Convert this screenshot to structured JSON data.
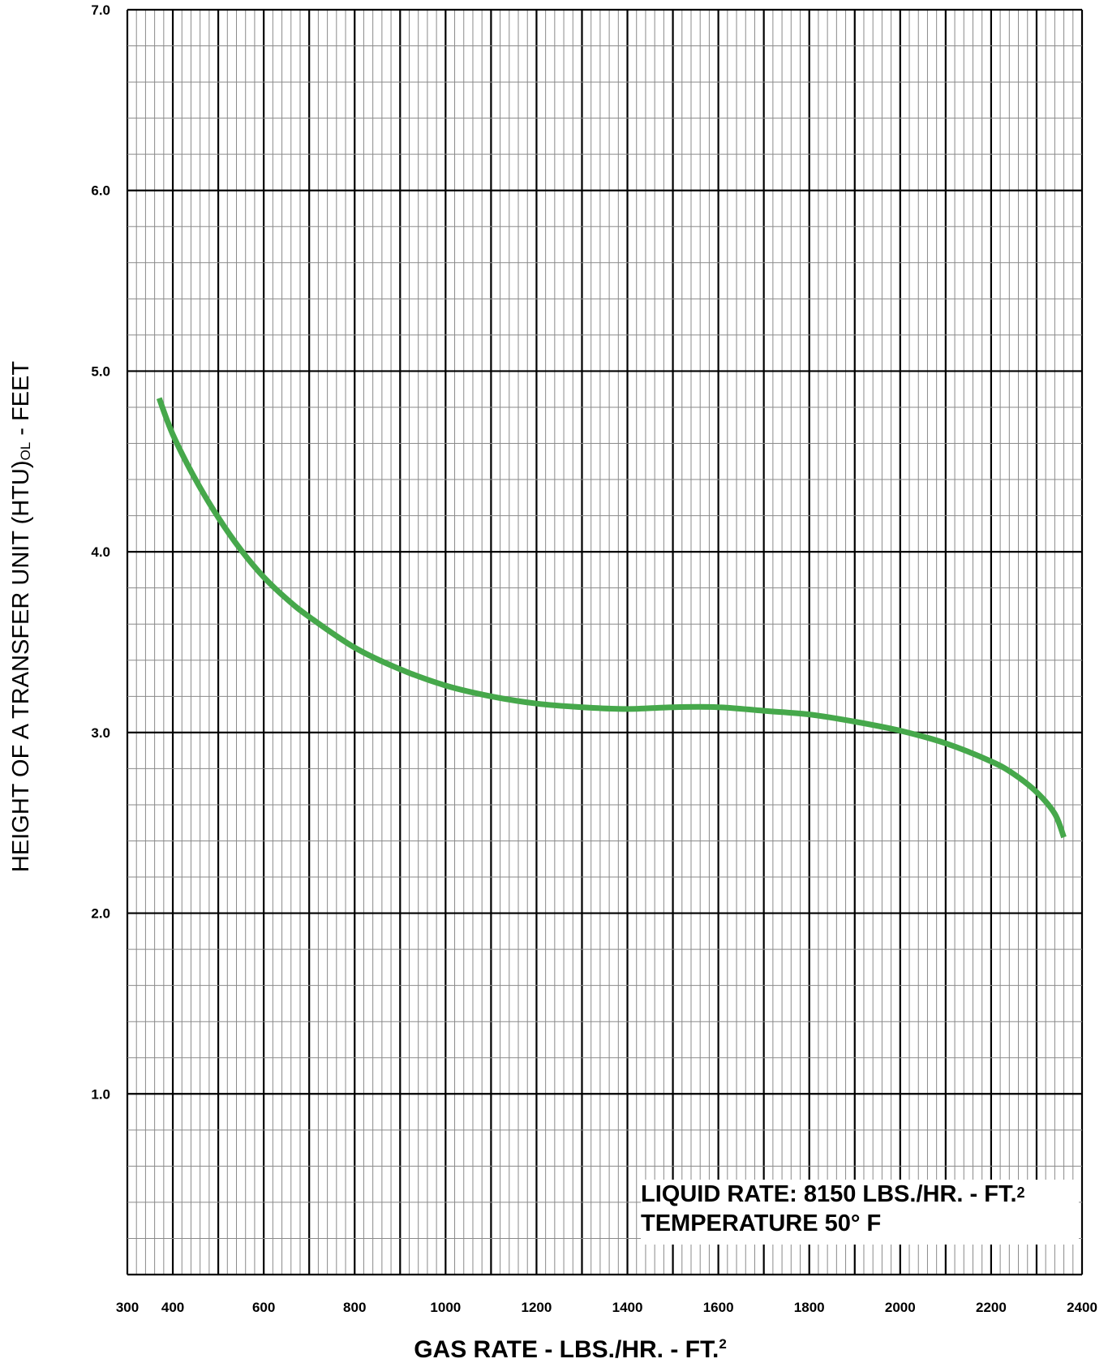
{
  "chart_data": {
    "type": "line",
    "xlabel": "GAS RATE - LBS./HR. - FT.",
    "xlabel_sup": "2",
    "ylabel_main": "HEIGHT OF A TRANSFER UNIT (HTU)",
    "ylabel_sub": "OL",
    "ylabel_end": " - FEET",
    "xlim": [
      300,
      2400
    ],
    "ylim": [
      0,
      7
    ],
    "x_ticks": [
      300,
      400,
      600,
      800,
      1000,
      1200,
      1400,
      1600,
      1800,
      2000,
      2200,
      2400
    ],
    "x_tick_labels": [
      "300",
      "400",
      "600",
      "800",
      "1000",
      "1200",
      "1400",
      "1600",
      "1800",
      "2000",
      "2200",
      "2400"
    ],
    "y_ticks": [
      1,
      2,
      3,
      4,
      5,
      6,
      7
    ],
    "y_tick_labels": [
      "1.0",
      "2.0",
      "3.0",
      "4.0",
      "5.0",
      "6.0",
      "7.0"
    ],
    "grid": true,
    "series": [
      {
        "color": "#46a84b",
        "x": [
          370,
          400,
          450,
          500,
          550,
          600,
          650,
          700,
          800,
          900,
          1000,
          1100,
          1200,
          1300,
          1400,
          1500,
          1600,
          1700,
          1800,
          1900,
          2000,
          2100,
          2200,
          2250,
          2300,
          2340,
          2360
        ],
        "y": [
          4.85,
          4.65,
          4.4,
          4.19,
          4.01,
          3.86,
          3.74,
          3.64,
          3.47,
          3.35,
          3.26,
          3.2,
          3.16,
          3.14,
          3.13,
          3.14,
          3.14,
          3.12,
          3.1,
          3.06,
          3.01,
          2.94,
          2.84,
          2.77,
          2.67,
          2.55,
          2.42
        ]
      }
    ],
    "annotation": {
      "line1": "LIQUID RATE: 8150 LBS./HR. - FT.",
      "line1_sup": "2",
      "line2": "TEMPERATURE 50° F"
    }
  }
}
